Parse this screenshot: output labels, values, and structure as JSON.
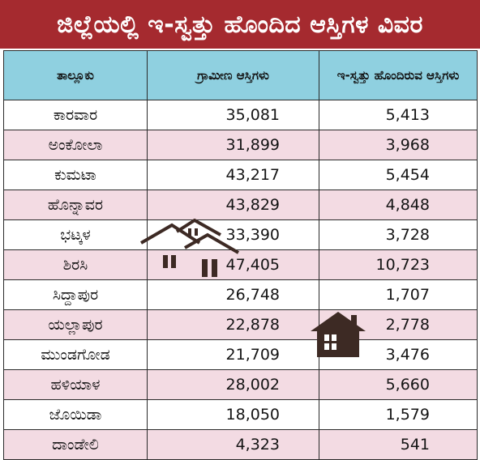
{
  "title": "ಜಿಲ್ಲೆಯಲ್ಲಿ ಇ-ಸ್ವತ್ತು ಹೊಂದಿದ ಆಸ್ತಿಗಳ ವಿವರ",
  "colors": {
    "title_bg": "#a52a2f",
    "header_bg": "#8fd0e0",
    "row_alt": "#f3dbe3",
    "icon": "#3d2a24"
  },
  "icons": [
    "houses-outline-icon",
    "house-icon"
  ],
  "table": {
    "headers": [
      "ತಾಲ್ಲೂಕು",
      "ಗ್ರಾಮೀಣ ಆಸ್ತಿಗಳು",
      "ಇ-ಸ್ವತ್ತು ಹೊಂದಿರುವ ಆಸ್ತಿಗಳು"
    ],
    "rows": [
      [
        "ಕಾರವಾರ",
        "35,081",
        "5,413"
      ],
      [
        "ಅಂಕೋಲಾ",
        "31,899",
        "3,968"
      ],
      [
        "ಕುಮಟಾ",
        "43,217",
        "5,454"
      ],
      [
        "ಹೊನ್ನಾವರ",
        "43,829",
        "4,848"
      ],
      [
        "ಭಟ್ಕಳ",
        "33,390",
        "3,728"
      ],
      [
        "ಶಿರಸಿ",
        "47,405",
        "10,723"
      ],
      [
        "ಸಿದ್ದಾಪುರ",
        "26,748",
        "1,707"
      ],
      [
        "ಯಲ್ಲಾಪುರ",
        "22,878",
        "2,778"
      ],
      [
        "ಮುಂಡಗೋಡ",
        "21,709",
        "3,476"
      ],
      [
        "ಹಳಿಯಾಳ",
        "28,002",
        "5,660"
      ],
      [
        "ಜೊಯಿಡಾ",
        "18,050",
        "1,579"
      ],
      [
        "ದಾಂಡೇಲಿ",
        "4,323",
        "541"
      ]
    ]
  }
}
